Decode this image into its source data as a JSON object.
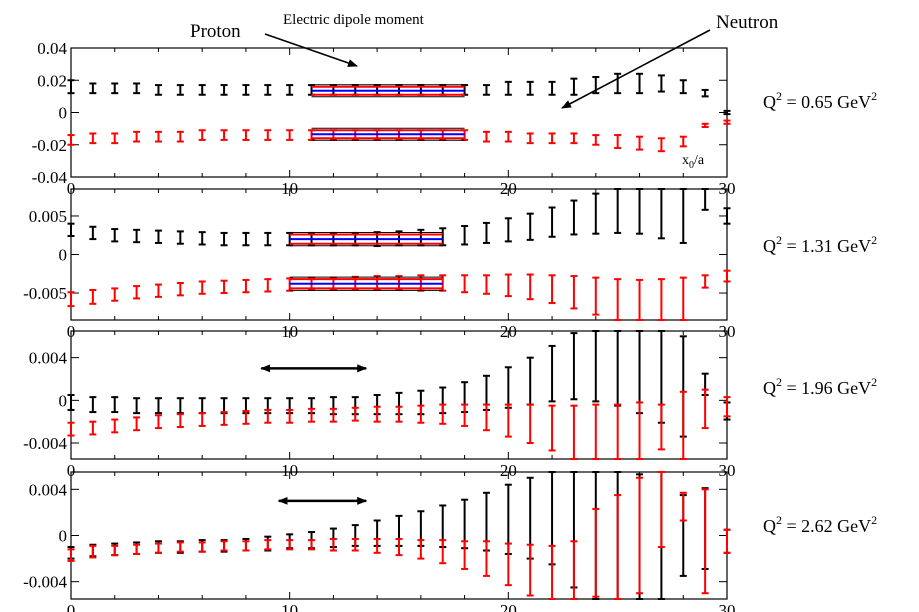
{
  "annotations": {
    "proton": "Proton",
    "electric_dipole_moment": "Electric dipole moment",
    "neutron": "Neutron",
    "axis_variable": "x",
    "axis_variable_sub": "0",
    "axis_variable_rest": "/a"
  },
  "colors": {
    "neutron_series": "#000000",
    "proton_series": "#ff0000",
    "fit_band_edge": "#ff0000",
    "fit_band_center": "#0000ff",
    "axis": "#000000"
  },
  "chart_data": [
    {
      "type": "scatter",
      "panel_label": {
        "prefix": "Q",
        "sup": "2",
        "value": " = 0.65 GeV",
        "unit_sup": "2"
      },
      "x_tick_labels": [
        "0",
        "10",
        "20",
        "30"
      ],
      "y_tick_labels": [
        "0.04",
        "0.02",
        "0",
        "-0.02",
        "-0.04"
      ],
      "y_ticks": [
        0.04,
        0.02,
        0,
        -0.02,
        -0.04
      ],
      "xlim": [
        0,
        30
      ],
      "ylim": [
        -0.04,
        0.04
      ],
      "series": [
        {
          "color": "#000000",
          "x": [
            0,
            1,
            2,
            3,
            4,
            5,
            6,
            7,
            8,
            9,
            10,
            11,
            12,
            13,
            14,
            15,
            16,
            17,
            18,
            19,
            20,
            21,
            22,
            23,
            24,
            25,
            26,
            27,
            28,
            29,
            30
          ],
          "y": [
            0.016,
            0.015,
            0.015,
            0.015,
            0.014,
            0.014,
            0.014,
            0.014,
            0.014,
            0.014,
            0.014,
            0.014,
            0.014,
            0.014,
            0.014,
            0.014,
            0.014,
            0.014,
            0.014,
            0.014,
            0.015,
            0.015,
            0.015,
            0.016,
            0.017,
            0.018,
            0.018,
            0.018,
            0.016,
            0.012,
            0.0
          ],
          "err": [
            0.004,
            0.003,
            0.003,
            0.003,
            0.003,
            0.003,
            0.003,
            0.003,
            0.003,
            0.003,
            0.003,
            0.003,
            0.003,
            0.003,
            0.003,
            0.003,
            0.003,
            0.003,
            0.003,
            0.003,
            0.004,
            0.004,
            0.004,
            0.005,
            0.005,
            0.006,
            0.006,
            0.005,
            0.004,
            0.002,
            0.001
          ]
        },
        {
          "color": "#ff0000",
          "x": [
            0,
            1,
            2,
            3,
            4,
            5,
            6,
            7,
            8,
            9,
            10,
            11,
            12,
            13,
            14,
            15,
            16,
            17,
            18,
            19,
            20,
            21,
            22,
            23,
            24,
            25,
            26,
            27,
            28,
            29,
            30
          ],
          "y": [
            -0.017,
            -0.016,
            -0.016,
            -0.015,
            -0.015,
            -0.015,
            -0.014,
            -0.014,
            -0.014,
            -0.014,
            -0.014,
            -0.014,
            -0.014,
            -0.014,
            -0.014,
            -0.014,
            -0.014,
            -0.014,
            -0.014,
            -0.015,
            -0.015,
            -0.016,
            -0.016,
            -0.016,
            -0.017,
            -0.018,
            -0.019,
            -0.02,
            -0.018,
            -0.008,
            -0.006
          ],
          "err": [
            0.003,
            0.003,
            0.003,
            0.003,
            0.003,
            0.003,
            0.003,
            0.003,
            0.003,
            0.003,
            0.003,
            0.003,
            0.003,
            0.003,
            0.003,
            0.003,
            0.003,
            0.003,
            0.003,
            0.003,
            0.003,
            0.003,
            0.003,
            0.003,
            0.003,
            0.004,
            0.004,
            0.004,
            0.003,
            0.001,
            0.001
          ]
        }
      ],
      "fit_bands": [
        {
          "x_start": 11,
          "x_end": 18,
          "center": 0.0135,
          "half_width": 0.0025
        },
        {
          "x_start": 11,
          "x_end": 18,
          "center": -0.0135,
          "half_width": 0.0025
        }
      ],
      "arrows": []
    },
    {
      "type": "scatter",
      "panel_label": {
        "prefix": "Q",
        "sup": "2",
        "value": " = 1.31 GeV",
        "unit_sup": "2"
      },
      "x_tick_labels": [
        "0",
        "10",
        "20",
        "30"
      ],
      "y_tick_labels": [
        "0.005",
        "0",
        "-0.005"
      ],
      "y_ticks": [
        0.005,
        0,
        -0.005
      ],
      "xlim": [
        0,
        30
      ],
      "ylim": [
        -0.0085,
        0.0085
      ],
      "series": [
        {
          "color": "#000000",
          "x": [
            0,
            1,
            2,
            3,
            4,
            5,
            6,
            7,
            8,
            9,
            10,
            11,
            12,
            13,
            14,
            15,
            16,
            17,
            18,
            19,
            20,
            21,
            22,
            23,
            24,
            25,
            26,
            27,
            28,
            29,
            30
          ],
          "y": [
            0.0032,
            0.0028,
            0.0025,
            0.0024,
            0.0023,
            0.0022,
            0.0021,
            0.002,
            0.002,
            0.002,
            0.002,
            0.002,
            0.002,
            0.002,
            0.002,
            0.0021,
            0.0022,
            0.0023,
            0.0025,
            0.0028,
            0.0032,
            0.0036,
            0.0042,
            0.0048,
            0.0053,
            0.0058,
            0.0063,
            0.0066,
            0.007,
            0.0073,
            0.005
          ],
          "err": [
            0.0008,
            0.0008,
            0.0008,
            0.0008,
            0.0008,
            0.0008,
            0.0008,
            0.0008,
            0.0008,
            0.0008,
            0.0008,
            0.0008,
            0.0008,
            0.0008,
            0.0009,
            0.0009,
            0.001,
            0.0011,
            0.0012,
            0.0013,
            0.0015,
            0.0017,
            0.0019,
            0.0022,
            0.0026,
            0.003,
            0.0036,
            0.0045,
            0.0055,
            0.0015,
            0.001
          ]
        },
        {
          "color": "#ff0000",
          "x": [
            0,
            1,
            2,
            3,
            4,
            5,
            6,
            7,
            8,
            9,
            10,
            11,
            12,
            13,
            14,
            15,
            16,
            17,
            18,
            19,
            20,
            21,
            22,
            23,
            24,
            25,
            26,
            27,
            28,
            29,
            30
          ],
          "y": [
            -0.0058,
            -0.0055,
            -0.0052,
            -0.0049,
            -0.0047,
            -0.0045,
            -0.0043,
            -0.0042,
            -0.0041,
            -0.004,
            -0.0039,
            -0.0038,
            -0.0038,
            -0.0037,
            -0.0037,
            -0.0037,
            -0.0037,
            -0.0037,
            -0.0038,
            -0.0039,
            -0.004,
            -0.0042,
            -0.0045,
            -0.0049,
            -0.0054,
            -0.006,
            -0.0065,
            -0.0068,
            -0.007,
            -0.0035,
            -0.0028
          ],
          "err": [
            0.0009,
            0.0009,
            0.0008,
            0.0008,
            0.0008,
            0.0008,
            0.0008,
            0.0008,
            0.0008,
            0.0008,
            0.0008,
            0.0008,
            0.0008,
            0.0008,
            0.0009,
            0.0009,
            0.001,
            0.001,
            0.0011,
            0.0012,
            0.0014,
            0.0016,
            0.0018,
            0.0021,
            0.0024,
            0.0028,
            0.0032,
            0.0036,
            0.004,
            0.0008,
            0.0007
          ]
        }
      ],
      "fit_bands": [
        {
          "x_start": 10,
          "x_end": 17,
          "center": 0.002,
          "half_width": 0.0006
        },
        {
          "x_start": 10,
          "x_end": 17,
          "center": -0.0038,
          "half_width": 0.0006
        }
      ],
      "arrows": []
    },
    {
      "type": "scatter",
      "panel_label": {
        "prefix": "Q",
        "sup": "2",
        "value": " = 1.96 GeV",
        "unit_sup": "2"
      },
      "x_tick_labels": [
        "0",
        "10",
        "20",
        "30"
      ],
      "y_tick_labels": [
        "0.004",
        "0",
        "-0.004"
      ],
      "y_ticks": [
        0.004,
        0,
        -0.004
      ],
      "xlim": [
        0,
        30
      ],
      "ylim": [
        -0.0055,
        0.0065
      ],
      "series": [
        {
          "color": "#000000",
          "x": [
            0,
            1,
            2,
            3,
            4,
            5,
            6,
            7,
            8,
            9,
            10,
            11,
            12,
            13,
            14,
            15,
            16,
            17,
            18,
            19,
            20,
            21,
            22,
            23,
            24,
            25,
            26,
            27,
            28,
            29,
            30
          ],
          "y": [
            -0.0002,
            -0.0004,
            -0.0004,
            -0.0005,
            -0.0005,
            -0.0005,
            -0.0005,
            -0.0005,
            -0.0005,
            -0.0005,
            -0.0005,
            -0.0005,
            -0.0005,
            -0.0005,
            -0.0004,
            -0.0003,
            -0.0002,
            0.0,
            0.0003,
            0.0007,
            0.0012,
            0.0018,
            0.0025,
            0.0032,
            0.0035,
            0.0037,
            0.0036,
            0.0035,
            0.0013,
            0.0015,
            -0.001
          ],
          "err": [
            0.0007,
            0.0007,
            0.0007,
            0.0007,
            0.0007,
            0.0007,
            0.0007,
            0.0007,
            0.0007,
            0.0007,
            0.0007,
            0.0007,
            0.0008,
            0.0008,
            0.0009,
            0.001,
            0.0011,
            0.0012,
            0.0014,
            0.0016,
            0.0019,
            0.0022,
            0.0026,
            0.0031,
            0.0036,
            0.0042,
            0.0048,
            0.0056,
            0.0047,
            0.001,
            0.0008
          ]
        },
        {
          "color": "#ff0000",
          "x": [
            0,
            1,
            2,
            3,
            4,
            5,
            6,
            7,
            8,
            9,
            10,
            11,
            12,
            13,
            14,
            15,
            16,
            17,
            18,
            19,
            20,
            21,
            22,
            23,
            24,
            25,
            26,
            27,
            28,
            29,
            30
          ],
          "y": [
            -0.0027,
            -0.0026,
            -0.0024,
            -0.0022,
            -0.002,
            -0.0019,
            -0.0018,
            -0.0017,
            -0.0016,
            -0.0015,
            -0.0015,
            -0.0014,
            -0.0014,
            -0.0013,
            -0.0013,
            -0.0013,
            -0.0013,
            -0.0013,
            -0.0014,
            -0.0016,
            -0.0019,
            -0.0022,
            -0.0026,
            -0.003,
            -0.0032,
            -0.0035,
            -0.0036,
            -0.0025,
            -0.0032,
            -0.0008,
            -0.0006
          ],
          "err": [
            0.0006,
            0.0006,
            0.0006,
            0.0006,
            0.0006,
            0.0006,
            0.0006,
            0.0006,
            0.0006,
            0.0006,
            0.0006,
            0.0006,
            0.0006,
            0.0006,
            0.0007,
            0.0007,
            0.0008,
            0.0009,
            0.001,
            0.0012,
            0.0015,
            0.0018,
            0.0021,
            0.0025,
            0.0028,
            0.0031,
            0.0034,
            0.0021,
            0.004,
            0.0018,
            0.0009
          ]
        }
      ],
      "fit_bands": [],
      "arrows": [
        {
          "x_start": 8.7,
          "x_end": 13.5,
          "y": 0.003
        }
      ]
    },
    {
      "type": "scatter",
      "panel_label": {
        "prefix": "Q",
        "sup": "2",
        "value": " = 2.62 GeV",
        "unit_sup": "2"
      },
      "x_tick_labels": [
        "0",
        "10",
        "20",
        "30"
      ],
      "y_tick_labels": [
        "0.004",
        "0",
        "-0.004"
      ],
      "y_ticks": [
        0.004,
        0,
        -0.004
      ],
      "xlim": [
        0,
        30
      ],
      "ylim": [
        -0.0055,
        0.0055
      ],
      "series": [
        {
          "color": "#000000",
          "x": [
            0,
            1,
            2,
            3,
            4,
            5,
            6,
            7,
            8,
            9,
            10,
            11,
            12,
            13,
            14,
            15,
            16,
            17,
            18,
            19,
            20,
            21,
            22,
            23,
            24,
            25,
            26,
            27,
            28,
            29,
            30
          ],
          "y": [
            -0.0015,
            -0.0013,
            -0.0012,
            -0.0011,
            -0.001,
            -0.001,
            -0.0009,
            -0.0009,
            -0.0008,
            -0.0007,
            -0.0005,
            -0.0004,
            -0.0002,
            0.0,
            0.0002,
            0.0004,
            0.0006,
            0.0008,
            0.001,
            0.0012,
            0.0014,
            0.0015,
            0.0015,
            0.0005,
            0.0,
            0.0,
            -0.0005,
            0.0,
            0.0,
            0.0006,
            -0.0005
          ],
          "err": [
            0.0005,
            0.0005,
            0.0005,
            0.0005,
            0.0005,
            0.0005,
            0.0005,
            0.0005,
            0.0005,
            0.0006,
            0.0006,
            0.0007,
            0.0008,
            0.0009,
            0.0011,
            0.0013,
            0.0015,
            0.0018,
            0.0021,
            0.0025,
            0.003,
            0.0035,
            0.004,
            0.005,
            0.0055,
            0.0056,
            0.0058,
            0.0058,
            0.0035,
            0.0035,
            0.001
          ]
        },
        {
          "color": "#ff0000",
          "x": [
            0,
            1,
            2,
            3,
            4,
            5,
            6,
            7,
            8,
            9,
            10,
            11,
            12,
            13,
            14,
            15,
            16,
            17,
            18,
            19,
            20,
            21,
            22,
            23,
            24,
            25,
            26,
            27,
            28,
            29,
            30
          ],
          "y": [
            -0.0017,
            -0.0014,
            -0.0013,
            -0.0012,
            -0.0011,
            -0.001,
            -0.001,
            -0.0009,
            -0.0009,
            -0.0008,
            -0.0008,
            -0.0008,
            -0.0008,
            -0.0008,
            -0.0009,
            -0.001,
            -0.0012,
            -0.0014,
            -0.0017,
            -0.002,
            -0.0025,
            -0.003,
            -0.0035,
            -0.0035,
            -0.0015,
            -0.001,
            0.0,
            0.0025,
            0.0025,
            -0.0005,
            -0.0005
          ],
          "err": [
            0.0005,
            0.0005,
            0.0004,
            0.0004,
            0.0004,
            0.0004,
            0.0004,
            0.0004,
            0.0004,
            0.0004,
            0.0004,
            0.0004,
            0.0005,
            0.0005,
            0.0006,
            0.0007,
            0.0008,
            0.001,
            0.0012,
            0.0015,
            0.0018,
            0.0022,
            0.0026,
            0.003,
            0.0038,
            0.0045,
            0.005,
            0.0035,
            0.0012,
            0.0045,
            0.001
          ]
        }
      ],
      "fit_bands": [],
      "arrows": [
        {
          "x_start": 9.5,
          "x_end": 13.5,
          "y": 0.003
        }
      ]
    }
  ]
}
